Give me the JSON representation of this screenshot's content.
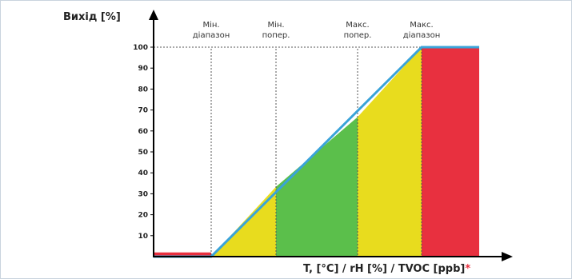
{
  "chart_data": {
    "type": "area",
    "title": "",
    "ylabel": "Вихід [%]",
    "xlabel": "T, [°C] / rH [%] / TVOC [ppb]",
    "xlabel_mark": "*",
    "ylim": [
      0,
      100
    ],
    "yticks": [
      "10",
      "20",
      "30",
      "40",
      "50",
      "60",
      "70",
      "80",
      "90",
      "100"
    ],
    "markers": [
      {
        "line1": "Мін.",
        "line2": "діапазон"
      },
      {
        "line1": "Мін.",
        "line2": "попер."
      },
      {
        "line1": "Макс.",
        "line2": "попер."
      },
      {
        "line1": "Макс.",
        "line2": "діапазон"
      }
    ],
    "zones": [
      {
        "name": "below-min-range",
        "color": "#e8303f",
        "output": 2
      },
      {
        "name": "min-range-to-min-alert",
        "color": "#e8dc1e"
      },
      {
        "name": "min-alert-to-max-alert",
        "color": "#5bbf4b"
      },
      {
        "name": "max-alert-to-max-range",
        "color": "#e8dc1e"
      },
      {
        "name": "above-max-range",
        "color": "#e8303f",
        "output": 100
      }
    ],
    "line_color": "#3aa3d9",
    "line_points": [
      {
        "x": 0,
        "y": 0
      },
      {
        "x": 1,
        "y": 0
      },
      {
        "x": 4,
        "y": 100
      },
      {
        "x": 5,
        "y": 100
      }
    ],
    "x_positions": {
      "min_range": 1,
      "min_alert": 2,
      "max_alert": 3,
      "max_range": 4,
      "end": 5
    }
  }
}
